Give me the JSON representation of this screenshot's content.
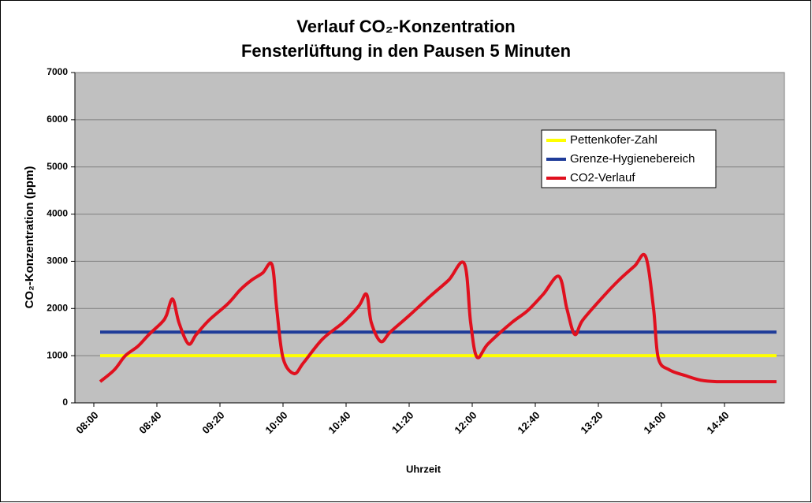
{
  "chart_data": {
    "type": "line",
    "title": "Verlauf CO₂-Konzentration",
    "subtitle": "Fensterlüftung in den Pausen 5 Minuten",
    "x_label": "Uhrzeit",
    "y_label": "CO₂-Konzentration (ppm)",
    "xlim": [
      -12,
      438
    ],
    "xticks": [
      {
        "value": 0,
        "label": "08:00"
      },
      {
        "value": 40,
        "label": "08:40"
      },
      {
        "value": 80,
        "label": "09:20"
      },
      {
        "value": 120,
        "label": "10:00"
      },
      {
        "value": 160,
        "label": "10:40"
      },
      {
        "value": 200,
        "label": "11:20"
      },
      {
        "value": 240,
        "label": "12:00"
      },
      {
        "value": 280,
        "label": "12:40"
      },
      {
        "value": 320,
        "label": "13:20"
      },
      {
        "value": 360,
        "label": "14:00"
      },
      {
        "value": 400,
        "label": "14:40"
      }
    ],
    "ylim": [
      0,
      7000
    ],
    "yticks": [
      0,
      1000,
      2000,
      3000,
      4000,
      5000,
      6000,
      7000
    ],
    "grid": true,
    "legend": "upper right",
    "series": [
      {
        "name": "Pettenkofer-Zahl",
        "color": "#ffff00",
        "x": [
          4,
          433
        ],
        "values": [
          1000,
          1000
        ]
      },
      {
        "name": "Grenze-Hygienebereich",
        "color": "#1f3c99",
        "x": [
          4,
          433
        ],
        "values": [
          1500,
          1500
        ]
      },
      {
        "name": "CO2-Verlauf",
        "color": "#e0101e",
        "x": [
          4,
          13,
          20,
          28,
          35,
          43,
          46,
          50,
          54,
          60,
          65,
          73,
          85,
          93,
          100,
          107,
          113,
          116,
          120,
          127,
          133,
          145,
          158,
          168,
          173,
          176,
          182,
          188,
          200,
          213,
          225,
          235,
          239,
          243,
          250,
          265,
          275,
          285,
          295,
          300,
          305,
          310,
          323,
          333,
          343,
          350,
          355,
          358,
          365,
          375,
          385,
          395,
          410,
          433
        ],
        "values": [
          450,
          700,
          1000,
          1200,
          1450,
          1700,
          1850,
          2200,
          1700,
          1250,
          1450,
          1750,
          2100,
          2400,
          2600,
          2750,
          2930,
          2000,
          950,
          620,
          850,
          1350,
          1700,
          2050,
          2300,
          1700,
          1300,
          1500,
          1850,
          2250,
          2600,
          2950,
          1700,
          970,
          1250,
          1700,
          1950,
          2300,
          2680,
          2000,
          1450,
          1750,
          2250,
          2600,
          2900,
          3100,
          2000,
          950,
          700,
          580,
          480,
          450,
          450,
          450
        ]
      }
    ]
  }
}
